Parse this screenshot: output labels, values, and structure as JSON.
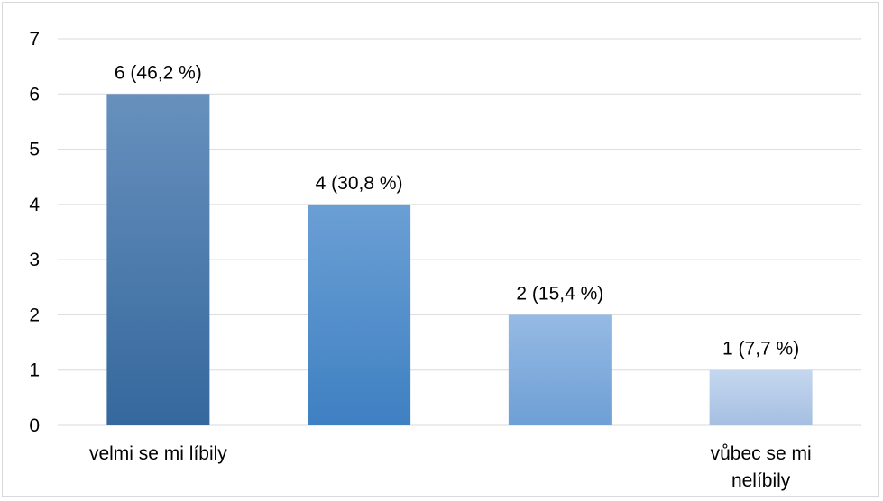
{
  "chart_data": {
    "type": "bar",
    "categories": [
      "velmi se mi líbily",
      "",
      "",
      "vůbec se mi nelíbily"
    ],
    "category_lines": [
      [
        "velmi se mi líbily"
      ],
      [],
      [],
      [
        "vůbec se mi",
        "nelíbily"
      ]
    ],
    "values": [
      6,
      4,
      2,
      1
    ],
    "data_labels": [
      "6 (46,2 %)",
      "4 (30,8 %)",
      "2 (15,4 %)",
      "1 (7,7 %)"
    ],
    "y_ticks": [
      "0",
      "1",
      "2",
      "3",
      "4",
      "5",
      "6",
      "7"
    ],
    "ylim": [
      0,
      7
    ],
    "grid": true,
    "legend": "none",
    "title": "",
    "xlabel": "",
    "ylabel": "",
    "bar_gradients": [
      [
        "#6790bd",
        "#35689d"
      ],
      [
        "#6b9fd4",
        "#3e80c2"
      ],
      [
        "#96bae4",
        "#6e9fd5"
      ],
      [
        "#c5d7ef",
        "#a5bfe1"
      ]
    ],
    "gridline_color": "#d9d9d9"
  }
}
